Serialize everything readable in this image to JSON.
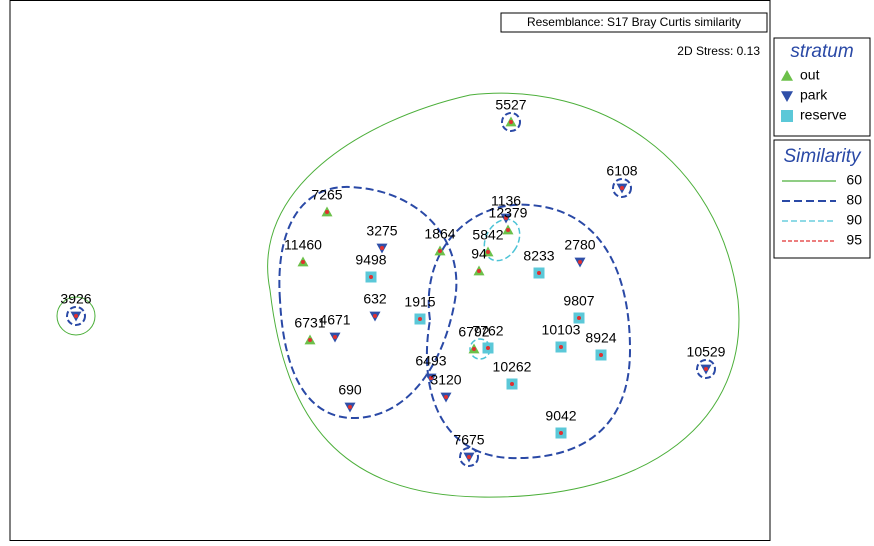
{
  "header": {
    "title": "Resemblance: S17 Bray Curtis similarity",
    "stress": "2D Stress: 0.13"
  },
  "legend": {
    "title": "stratum",
    "items": [
      {
        "key": "out",
        "color": "#6cc04a"
      },
      {
        "key": "park",
        "color": "#2f4fa8"
      },
      {
        "key": "reserve",
        "color": "#5bc8d8"
      }
    ]
  },
  "similarity": {
    "title": "Similarity",
    "items": [
      {
        "label": "60",
        "color": "#4caf3a",
        "dash": "none"
      },
      {
        "label": "80",
        "color": "#2a49a6",
        "dash": "8 4"
      },
      {
        "label": "90",
        "color": "#4cc3d6",
        "dash": "6 3"
      },
      {
        "label": "95",
        "color": "#e03030",
        "dash": "4 2"
      }
    ]
  },
  "points": [
    {
      "label": "5527",
      "stratum": "out"
    },
    {
      "label": "6108",
      "stratum": "park"
    },
    {
      "label": "3926",
      "stratum": "park"
    },
    {
      "label": "7265",
      "stratum": "out"
    },
    {
      "label": "3275",
      "stratum": "park"
    },
    {
      "label": "11460",
      "stratum": "out"
    },
    {
      "label": "9498",
      "stratum": "reserve"
    },
    {
      "label": "1864",
      "stratum": "out"
    },
    {
      "label": "1136",
      "stratum": "park"
    },
    {
      "label": "12379",
      "stratum": "out"
    },
    {
      "label": "5842",
      "stratum": "out"
    },
    {
      "label": "94",
      "stratum": "out"
    },
    {
      "label": "8233",
      "stratum": "reserve"
    },
    {
      "label": "2780",
      "stratum": "park"
    },
    {
      "label": "632",
      "stratum": "park"
    },
    {
      "label": "1915",
      "stratum": "reserve"
    },
    {
      "label": "4671",
      "stratum": "park"
    },
    {
      "label": "6731",
      "stratum": "out"
    },
    {
      "label": "9807",
      "stratum": "reserve"
    },
    {
      "label": "6792",
      "stratum": "out"
    },
    {
      "label": "7762",
      "stratum": "reserve"
    },
    {
      "label": "10103",
      "stratum": "reserve"
    },
    {
      "label": "8924",
      "stratum": "reserve"
    },
    {
      "label": "10529",
      "stratum": "park"
    },
    {
      "label": "6493",
      "stratum": "park"
    },
    {
      "label": "3120",
      "stratum": "park"
    },
    {
      "label": "10262",
      "stratum": "reserve"
    },
    {
      "label": "690",
      "stratum": "park"
    },
    {
      "label": "9042",
      "stratum": "reserve"
    },
    {
      "label": "7675",
      "stratum": "park"
    }
  ]
}
